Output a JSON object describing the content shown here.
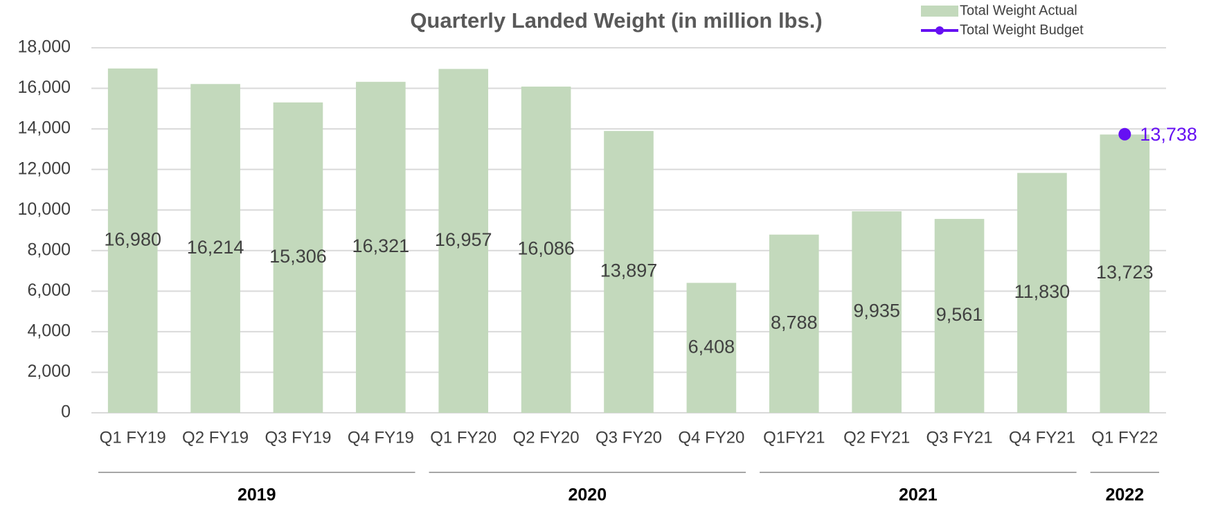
{
  "chart_data": {
    "type": "bar",
    "title": "Quarterly Landed Weight (in million lbs.)",
    "categories": [
      "Q1 FY19",
      "Q2 FY19",
      "Q3 FY19",
      "Q4 FY19",
      "Q1 FY20",
      "Q2 FY20",
      "Q3 FY20",
      "Q4 FY20",
      "Q1FY21",
      "Q2 FY21",
      "Q3 FY21",
      "Q4 FY21",
      "Q1 FY22"
    ],
    "series": [
      {
        "name": "Total Weight Actual",
        "type": "bar",
        "color": "#c3d9bc",
        "values": [
          16980,
          16214,
          15306,
          16321,
          16957,
          16086,
          13897,
          6408,
          8788,
          9935,
          9561,
          11830,
          13723
        ],
        "value_labels": [
          "16,980",
          "16,214",
          "15,306",
          "16,321",
          "16,957",
          "16,086",
          "13,897",
          "6,408",
          "8,788",
          "9,935",
          "9,561",
          "11,830",
          "13,723"
        ]
      },
      {
        "name": "Total Weight Budget",
        "type": "line",
        "color": "#6610f2",
        "values": [
          null,
          null,
          null,
          null,
          null,
          null,
          null,
          null,
          null,
          null,
          null,
          null,
          13738
        ],
        "value_labels": [
          null,
          null,
          null,
          null,
          null,
          null,
          null,
          null,
          null,
          null,
          null,
          null,
          "13,738"
        ]
      }
    ],
    "ylim": [
      0,
      18000
    ],
    "yticks": [
      0,
      {
        "value": 2000,
        "label": "2,000"
      },
      {
        "value": 4000,
        "label": "4,000"
      },
      {
        "value": 6000,
        "label": "6,000"
      },
      {
        "value": 8000,
        "label": "8,000"
      },
      {
        "value": 10000,
        "label": "10,000"
      },
      {
        "value": 12000,
        "label": "12,000"
      },
      {
        "value": 14000,
        "label": "14,000"
      },
      {
        "value": 16000,
        "label": "16,000"
      },
      {
        "value": 18000,
        "label": "18,000"
      }
    ],
    "grid": true,
    "legend": "top-right",
    "groups": [
      {
        "label": "2019",
        "start": 0,
        "end": 3
      },
      {
        "label": "2020",
        "start": 4,
        "end": 7
      },
      {
        "label": "2021",
        "start": 8,
        "end": 11
      },
      {
        "label": "2022",
        "start": 12,
        "end": 12
      }
    ]
  }
}
